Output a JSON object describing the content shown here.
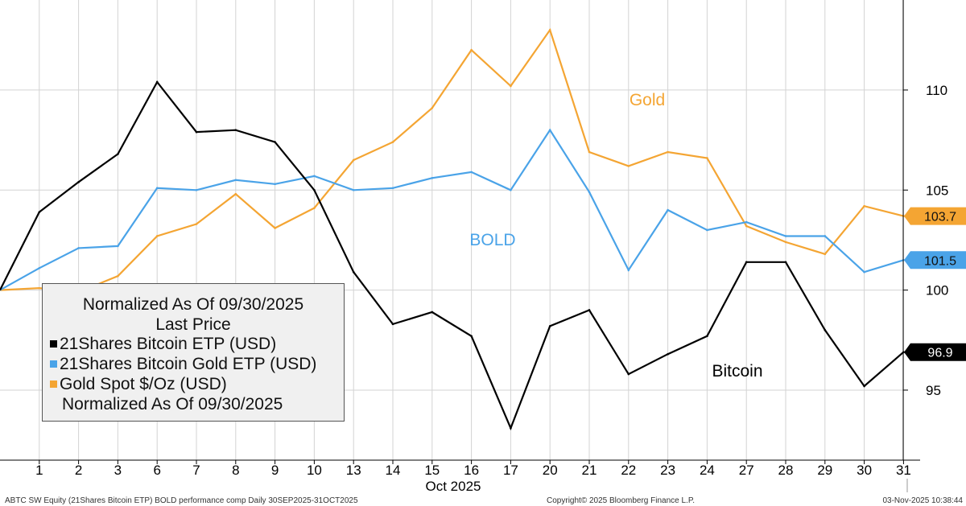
{
  "chart_data": {
    "type": "line",
    "x": [
      "1",
      "2",
      "3",
      "6",
      "7",
      "8",
      "9",
      "10",
      "13",
      "14",
      "15",
      "16",
      "17",
      "20",
      "21",
      "22",
      "23",
      "24",
      "27",
      "28",
      "29",
      "30",
      "31"
    ],
    "xlabel": "Oct 2025",
    "ylim": [
      91.5,
      114.5
    ],
    "yticks": [
      95,
      100,
      105,
      110
    ],
    "y_start": 100,
    "series": [
      {
        "name": "21Shares Bitcoin ETP (USD)",
        "short_label": "Bitcoin",
        "color": "#000000",
        "last_value": "96.9",
        "values": [
          103.9,
          105.4,
          106.8,
          110.4,
          107.9,
          108.0,
          107.4,
          105.0,
          100.9,
          98.3,
          98.9,
          97.7,
          93.1,
          98.2,
          99.0,
          95.8,
          96.8,
          97.7,
          101.4,
          101.4,
          98.0,
          95.2,
          96.9
        ]
      },
      {
        "name": "21Shares Bitcoin Gold ETP (USD)",
        "short_label": "BOLD",
        "color": "#4aa3e8",
        "last_value": "101.5",
        "values": [
          101.1,
          102.1,
          102.2,
          105.1,
          105.0,
          105.5,
          105.3,
          105.7,
          105.0,
          105.1,
          105.6,
          105.9,
          105.0,
          108.0,
          104.9,
          101.0,
          104.0,
          103.0,
          103.4,
          102.7,
          102.7,
          100.9,
          101.5
        ]
      },
      {
        "name": "Gold Spot $/Oz (USD)",
        "short_label": "Gold",
        "color": "#f4a533",
        "last_value": "103.7",
        "values": [
          100.1,
          99.9,
          100.7,
          102.7,
          103.3,
          104.8,
          103.1,
          104.1,
          106.5,
          107.4,
          109.1,
          112.0,
          110.2,
          113.0,
          106.9,
          106.2,
          106.9,
          106.6,
          103.2,
          102.4,
          101.8,
          104.2,
          103.7
        ]
      }
    ],
    "legend": {
      "title_line1": "Normalized As Of 09/30/2025",
      "title_line2": "Last Price",
      "footer": "Normalized As Of 09/30/2025"
    }
  },
  "footer": {
    "left": "ABTC SW Equity (21Shares Bitcoin ETP) BOLD performance comp Daily 30SEP2025-31OCT2025",
    "center": "Copyright© 2025 Bloomberg Finance L.P.",
    "right": "03-Nov-2025 10:38:44"
  }
}
